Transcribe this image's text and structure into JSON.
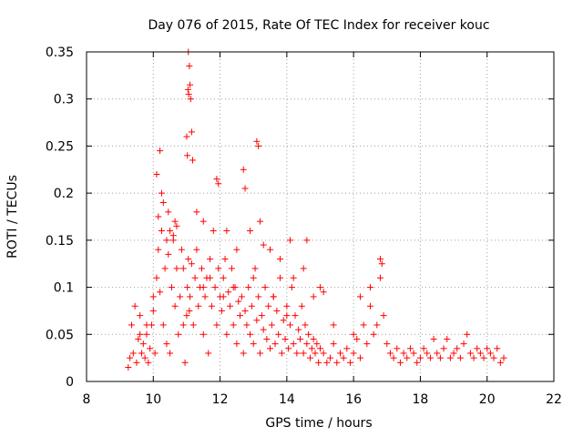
{
  "chart_data": {
    "type": "scatter",
    "title": "Day 076 of 2015, Rate Of TEC Index for receiver kouc",
    "xlabel": "GPS time / hours",
    "ylabel": "ROTI / TECUs",
    "xlim": [
      8,
      22
    ],
    "ylim": [
      0,
      0.35
    ],
    "x_ticks": [
      8,
      10,
      12,
      14,
      16,
      18,
      20,
      22
    ],
    "x_tick_labels": [
      "8",
      "10",
      "12",
      "14",
      "16",
      "18",
      "20",
      "22"
    ],
    "y_ticks": [
      0,
      0.05,
      0.1,
      0.15,
      0.2,
      0.25,
      0.3,
      0.35
    ],
    "y_tick_labels": [
      "0",
      "0.05",
      "0.1",
      "0.15",
      "0.2",
      "0.25",
      "0.3",
      "0.35"
    ],
    "grid": true,
    "marker": "plus",
    "color": "#ff0000",
    "series": [
      {
        "x": [
          9.25,
          9.3,
          9.35,
          9.4,
          9.45,
          9.5,
          9.55,
          9.6,
          9.65,
          9.7,
          9.75,
          9.8,
          9.85,
          9.9,
          9.95,
          10.0,
          10.05,
          10.1,
          10.15,
          10.2,
          10.25,
          10.3,
          10.35,
          10.4,
          10.45,
          10.5,
          10.55,
          10.6,
          10.65,
          10.7,
          10.75,
          10.8,
          10.85,
          10.9,
          10.95,
          11.0,
          11.02,
          11.05,
          11.08,
          11.1,
          11.15,
          11.2,
          11.25,
          11.3,
          11.35,
          11.4,
          11.45,
          11.5,
          11.55,
          11.6,
          11.65,
          11.7,
          11.75,
          11.8,
          11.85,
          11.9,
          11.95,
          12.0,
          12.05,
          12.1,
          12.15,
          12.2,
          12.25,
          12.3,
          12.35,
          12.4,
          12.45,
          12.5,
          12.55,
          12.6,
          12.65,
          12.7,
          12.75,
          12.8,
          12.85,
          12.9,
          12.95,
          13.0,
          13.05,
          13.1,
          13.15,
          13.2,
          13.25,
          13.3,
          13.35,
          13.4,
          13.45,
          13.5,
          13.55,
          13.6,
          13.65,
          13.7,
          13.75,
          13.8,
          13.85,
          13.9,
          13.95,
          14.0,
          14.05,
          14.1,
          14.15,
          14.2,
          14.25,
          14.3,
          14.35,
          14.4,
          14.45,
          14.5,
          14.55,
          14.6,
          14.65,
          14.7,
          14.75,
          14.8,
          14.85,
          14.9,
          14.95,
          15.0,
          15.1,
          15.2,
          15.3,
          15.4,
          15.5,
          15.6,
          15.7,
          15.8,
          15.9,
          16.0,
          16.1,
          16.2,
          16.3,
          16.4,
          16.5,
          16.6,
          16.7,
          16.8,
          16.9,
          17.0,
          17.1,
          17.2,
          17.3,
          17.4,
          17.5,
          17.6,
          17.7,
          17.8,
          17.9,
          18.0,
          18.1,
          18.2,
          18.3,
          18.4,
          18.5,
          18.6,
          18.7,
          18.8,
          18.9,
          19.0,
          19.1,
          19.2,
          19.3,
          19.4,
          19.5,
          19.6,
          19.7,
          19.8,
          19.9,
          20.0,
          20.1,
          20.2,
          20.3,
          20.4,
          20.5,
          10.15,
          10.2,
          10.25,
          10.3,
          10.5,
          10.6,
          10.65,
          10.7,
          11.05,
          11.08,
          11.1,
          11.12,
          11.15,
          11.18,
          11.9,
          11.95,
          12.7,
          12.75,
          13.1,
          13.15,
          13.2,
          14.6,
          16.8,
          16.85,
          10.4,
          10.45,
          10.9,
          11.3,
          11.5,
          12.2,
          12.9,
          13.3,
          13.5,
          14.1,
          14.5,
          15.1,
          16.2,
          16.5,
          11.04,
          11.06,
          11.0,
          11.02,
          10.1,
          11.5,
          12.5,
          13.8,
          14.2,
          15.0,
          9.6,
          9.8,
          10.0,
          11.7,
          12.1,
          12.4,
          13.0,
          13.6,
          14.0,
          14.8,
          15.4,
          16.0
        ],
        "y": [
          0.015,
          0.025,
          0.06,
          0.03,
          0.08,
          0.02,
          0.045,
          0.07,
          0.03,
          0.04,
          0.025,
          0.05,
          0.02,
          0.035,
          0.06,
          0.075,
          0.03,
          0.11,
          0.14,
          0.095,
          0.16,
          0.06,
          0.12,
          0.04,
          0.135,
          0.03,
          0.1,
          0.15,
          0.08,
          0.12,
          0.05,
          0.09,
          0.14,
          0.06,
          0.02,
          0.07,
          0.1,
          0.13,
          0.075,
          0.09,
          0.125,
          0.06,
          0.11,
          0.14,
          0.08,
          0.1,
          0.12,
          0.05,
          0.09,
          0.11,
          0.03,
          0.13,
          0.08,
          0.16,
          0.1,
          0.06,
          0.12,
          0.09,
          0.075,
          0.11,
          0.13,
          0.05,
          0.095,
          0.08,
          0.12,
          0.06,
          0.1,
          0.04,
          0.085,
          0.07,
          0.09,
          0.03,
          0.075,
          0.06,
          0.1,
          0.05,
          0.08,
          0.04,
          0.12,
          0.065,
          0.09,
          0.03,
          0.07,
          0.055,
          0.1,
          0.045,
          0.08,
          0.035,
          0.06,
          0.09,
          0.04,
          0.075,
          0.05,
          0.11,
          0.03,
          0.065,
          0.045,
          0.08,
          0.035,
          0.06,
          0.1,
          0.04,
          0.07,
          0.03,
          0.055,
          0.045,
          0.08,
          0.03,
          0.06,
          0.04,
          0.05,
          0.025,
          0.035,
          0.045,
          0.03,
          0.04,
          0.02,
          0.035,
          0.03,
          0.02,
          0.025,
          0.04,
          0.02,
          0.03,
          0.025,
          0.035,
          0.02,
          0.03,
          0.045,
          0.025,
          0.06,
          0.04,
          0.08,
          0.05,
          0.06,
          0.11,
          0.07,
          0.04,
          0.03,
          0.025,
          0.035,
          0.02,
          0.03,
          0.025,
          0.035,
          0.03,
          0.02,
          0.025,
          0.035,
          0.03,
          0.025,
          0.045,
          0.03,
          0.025,
          0.035,
          0.045,
          0.025,
          0.03,
          0.035,
          0.025,
          0.04,
          0.05,
          0.03,
          0.025,
          0.035,
          0.03,
          0.025,
          0.035,
          0.03,
          0.025,
          0.035,
          0.02,
          0.025,
          0.175,
          0.245,
          0.2,
          0.19,
          0.16,
          0.155,
          0.17,
          0.165,
          0.35,
          0.335,
          0.315,
          0.3,
          0.265,
          0.235,
          0.215,
          0.21,
          0.225,
          0.205,
          0.255,
          0.25,
          0.17,
          0.15,
          0.13,
          0.125,
          0.15,
          0.18,
          0.12,
          0.18,
          0.17,
          0.16,
          0.16,
          0.145,
          0.14,
          0.15,
          0.12,
          0.095,
          0.09,
          0.1,
          0.31,
          0.305,
          0.26,
          0.24,
          0.22,
          0.1,
          0.14,
          0.13,
          0.11,
          0.1,
          0.05,
          0.06,
          0.09,
          0.11,
          0.09,
          0.1,
          0.11,
          0.09,
          0.07,
          0.09,
          0.06,
          0.05
        ]
      }
    ]
  }
}
